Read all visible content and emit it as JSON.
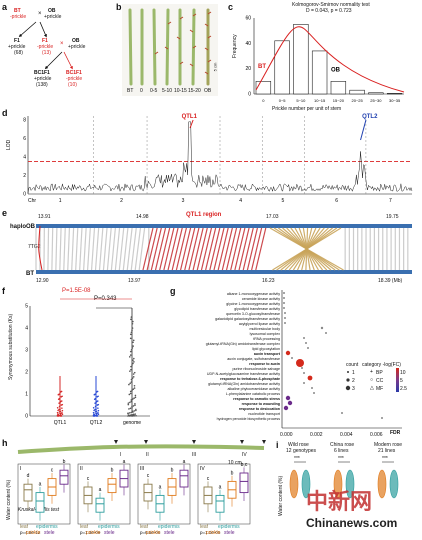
{
  "panels": {
    "a": {
      "label": "a",
      "p_bt": "BT",
      "p_bt_sub": "-prickle",
      "p_ob": "OB",
      "p_ob_sub": "+prickle",
      "f1a": "F1",
      "f1a_sub": "+prickle",
      "f1a_n": "(68)",
      "f1b": "F1",
      "f1b_sub": "-prickle",
      "f1b_n": "(13)",
      "ob2": "OB",
      "ob2_sub": "+prickle",
      "bc1": "BC1F1",
      "bc1_sub": "+prickle",
      "bc1_n": "(138)",
      "bc2": "BC1F1",
      "bc2_sub": "-prickle",
      "bc2_n": "(10)"
    },
    "b": {
      "label": "b",
      "stems": [
        "BT",
        "0",
        "0-5",
        "5-10",
        "10-15",
        "15-20",
        "OB"
      ],
      "scale": "5 cm"
    },
    "c": {
      "label": "c",
      "title": "Kolmogorov-Smirnov normality test",
      "stats": "D = 0.043, p = 0.723",
      "ylabel": "Frequency",
      "xlabel": "Prickle number per unit of stem",
      "bt": "BT",
      "ob": "OB"
    },
    "d": {
      "label": "d",
      "ylabel": "LOD",
      "chr": [
        "Chr",
        "1",
        "2",
        "3",
        "4",
        "5",
        "6",
        "7"
      ],
      "qtl1": "QTL1",
      "qtl2": "QTL2"
    },
    "e": {
      "label": "e",
      "top": "haploOB",
      "bottom": "BT",
      "region": "QTL1 region",
      "gene": "7TG2",
      "top_ticks": [
        "13.91",
        "14.98",
        "17.03",
        "19.75"
      ],
      "bottom_ticks": [
        "12.90",
        "13.97",
        "16.23",
        "18.39 (Mb)"
      ]
    },
    "f": {
      "label": "f",
      "ylabel": "Synonymous substitution (Ks)",
      "p1": "P=1.5E-08",
      "p2": "P=0.343",
      "groups": [
        "QTL1",
        "QTL2",
        "genome"
      ]
    },
    "g": {
      "label": "g",
      "xlabel": "FDR",
      "xticks": [
        "0.000",
        "0.002",
        "0.004",
        "0.006"
      ],
      "legend_count": "count",
      "legend_cat": "category -log(FC)",
      "legend_sizes": [
        "1",
        "2",
        "3"
      ],
      "legend_cats": [
        "BP",
        "CC",
        "MF"
      ],
      "legend_vals": [
        "10",
        "5",
        "2.5"
      ],
      "terms": [
        "alkane 1-monooxygenase activity",
        "ceramide kinase activity",
        "glycine 1-monooxygenase activity",
        "glycolipid transferase activity",
        "quercetin 3-O-glucosyltransferase",
        "galactolipid galactosyltransferase activity",
        "acylglycerol lipase activity",
        "multivesicular body",
        "lysosomal complex",
        "tRNA processing",
        "glutamyl-tRNA(Gln) amidotransferase complex",
        "lipid glycosylation",
        "auxin transport",
        "auxin conjugate, sulfotransferase",
        "response to auxin",
        "purine ribonucleoside salvage",
        "UDP-N-acetylglucosamine transferase activity",
        "response to trehalose-6-phosphate",
        "glutamyl-tRNA(Gln) amidotransferase activity",
        "alkaline phytoceramidase activity",
        "L-phenylalanine catabolic process",
        "response to osmotic stress",
        "response to wounding",
        "response to desiccation",
        "nucleotide transport",
        "hydrogen peroxide biosynthetic process"
      ]
    },
    "h": {
      "label": "h",
      "scale": "10 cm",
      "stem_marks": [
        "I",
        "II",
        "III",
        "IV"
      ],
      "ylabel": "Water content (%)",
      "test": "Kruskal-Wallis test",
      "subpanels": [
        {
          "id": "I",
          "p": "p=4.9e-12"
        },
        {
          "id": "II",
          "p": "p=1.3e-09"
        },
        {
          "id": "III",
          "p": "p=6.5e-08"
        },
        {
          "id": "IV",
          "p": "p=1.0e-05"
        }
      ],
      "xlabels_top": [
        "leaf",
        "epidermis"
      ],
      "xlabels_bottom": [
        "prickle",
        "stele"
      ],
      "letters": [
        "d",
        "a",
        "c",
        "b",
        "c",
        "a",
        "b",
        "a",
        "c",
        "a",
        "b",
        "a",
        "c",
        "a",
        "b",
        "b,c"
      ]
    },
    "i": {
      "label": "i",
      "groups": [
        {
          "name": "Wild rose",
          "n": "12 genotypes",
          "sig": "***"
        },
        {
          "name": "China rose",
          "n": "6 lines",
          "sig": "***"
        },
        {
          "name": "Modern rose",
          "n": "21 lines",
          "sig": "***"
        }
      ],
      "ylabel": "Water content (%)"
    }
  },
  "watermark": {
    "cn": "中新网",
    "en": "Chinanews.com"
  },
  "colors": {
    "red": "#c6363b",
    "gold": "#c9a45a",
    "gray": "#9a9a9a",
    "leaf": "#8a7a4a",
    "epidermis": "#2e9e9e",
    "prickle": "#e07a1c",
    "stele": "#6a2a8a",
    "stem": "#9bb86a"
  },
  "chart_data": [
    {
      "type": "bar",
      "categories": [
        "0",
        "0~5",
        "5~10",
        "10~15",
        "15~20",
        "20~25",
        "25~30",
        "30~35"
      ],
      "values": [
        10,
        42,
        55,
        34,
        10,
        3,
        1,
        0.5
      ],
      "ylim": [
        0,
        60
      ],
      "yticks": [
        "0",
        "20",
        "40",
        "60"
      ]
    }
  ]
}
